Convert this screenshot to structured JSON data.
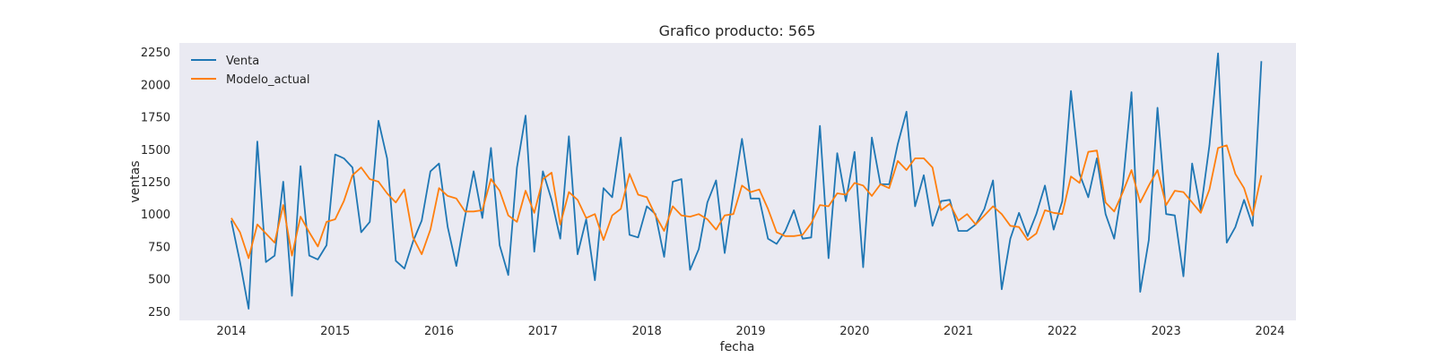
{
  "chart_data": {
    "type": "line",
    "title": "Grafico producto: 565",
    "xlabel": "fecha",
    "ylabel": "ventas",
    "x_start": "2014-01",
    "x_step": "month",
    "xlim": [
      "2013-07",
      "2024-04"
    ],
    "ylim": [
      180,
      2320
    ],
    "x_ticks": [
      "2014",
      "2015",
      "2016",
      "2017",
      "2018",
      "2019",
      "2020",
      "2021",
      "2022",
      "2023",
      "2024"
    ],
    "y_ticks": [
      250,
      500,
      750,
      1000,
      1250,
      1500,
      1750,
      2000,
      2250
    ],
    "grid": false,
    "legend_position": "upper-left",
    "series": [
      {
        "name": "Venta",
        "color": "#1f77b4",
        "values": [
          950,
          630,
          270,
          1560,
          630,
          680,
          1250,
          370,
          1370,
          680,
          650,
          760,
          1460,
          1430,
          1360,
          860,
          940,
          1720,
          1430,
          640,
          580,
          790,
          950,
          1330,
          1390,
          900,
          600,
          980,
          1330,
          970,
          1510,
          760,
          530,
          1360,
          1760,
          710,
          1330,
          1110,
          810,
          1600,
          690,
          960,
          490,
          1200,
          1130,
          1590,
          840,
          820,
          1060,
          1000,
          670,
          1250,
          1270,
          570,
          730,
          1090,
          1260,
          700,
          1160,
          1580,
          1120,
          1120,
          810,
          770,
          870,
          1030,
          810,
          820,
          1680,
          660,
          1470,
          1100,
          1480,
          590,
          1590,
          1230,
          1230,
          1540,
          1790,
          1060,
          1300,
          910,
          1100,
          1110,
          870,
          870,
          920,
          1040,
          1260,
          420,
          810,
          1010,
          830,
          1000,
          1220,
          880,
          1100,
          1950,
          1310,
          1130,
          1430,
          1000,
          810,
          1230,
          1940,
          400,
          800,
          1820,
          1000,
          990,
          520,
          1390,
          1030,
          1530,
          2240,
          780,
          900,
          1110,
          910,
          2180
        ]
      },
      {
        "name": "Modelo_actual",
        "color": "#ff7f0e",
        "values": [
          970,
          860,
          660,
          920,
          850,
          780,
          1070,
          680,
          980,
          860,
          750,
          940,
          960,
          1100,
          1300,
          1360,
          1270,
          1250,
          1160,
          1090,
          1190,
          820,
          690,
          880,
          1200,
          1140,
          1120,
          1020,
          1020,
          1030,
          1270,
          1180,
          990,
          940,
          1180,
          1010,
          1270,
          1320,
          920,
          1170,
          1110,
          970,
          1000,
          800,
          990,
          1040,
          1310,
          1150,
          1130,
          990,
          870,
          1060,
          990,
          980,
          1000,
          960,
          880,
          990,
          1000,
          1220,
          1170,
          1190,
          1040,
          860,
          830,
          830,
          840,
          930,
          1070,
          1060,
          1160,
          1150,
          1240,
          1220,
          1140,
          1230,
          1200,
          1410,
          1340,
          1430,
          1430,
          1360,
          1030,
          1080,
          950,
          1000,
          920,
          990,
          1060,
          1000,
          910,
          900,
          800,
          850,
          1030,
          1010,
          1000,
          1290,
          1240,
          1480,
          1490,
          1090,
          1020,
          1170,
          1340,
          1090,
          1220,
          1340,
          1070,
          1180,
          1170,
          1090,
          1010,
          1190,
          1510,
          1530,
          1310,
          1200,
          990,
          1300
        ]
      }
    ]
  }
}
